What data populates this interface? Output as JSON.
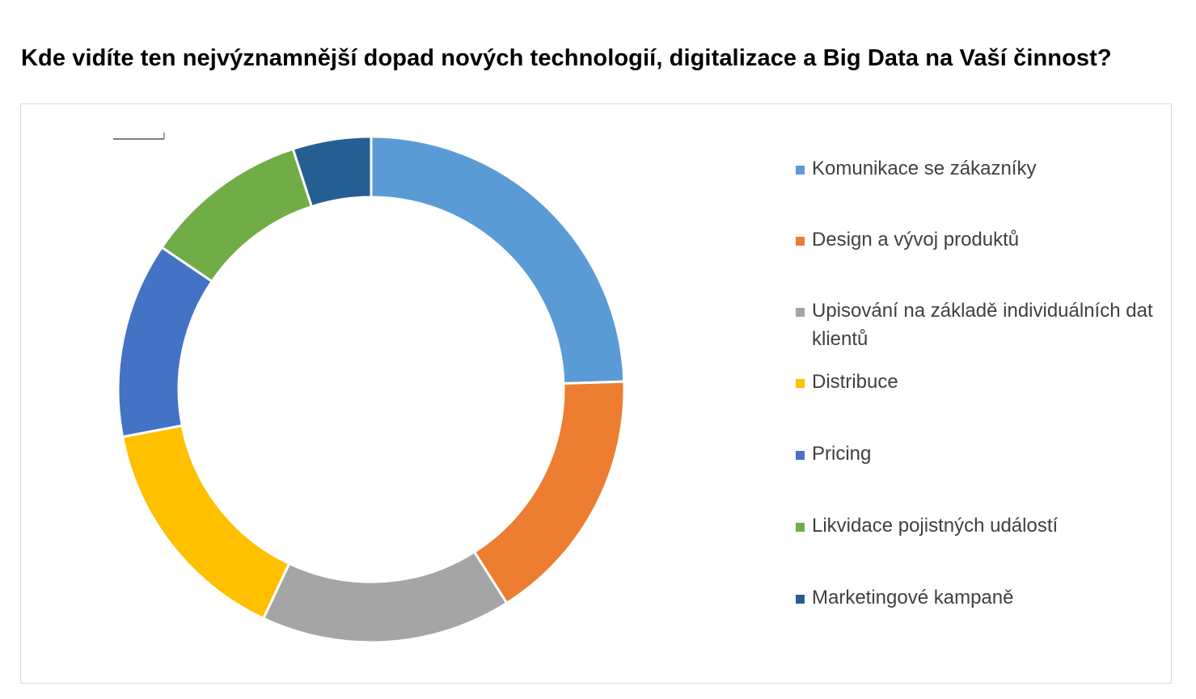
{
  "chart_data": {
    "type": "pie",
    "donut": true,
    "title": "Kde vidíte ten nejvýznamnější dopad nových technologií, digitalizace a Big Data na Vaší činnost?",
    "legend_position": "right",
    "slices": [
      {
        "label": "Komunikace se zákazníky",
        "value": 24.5,
        "color": "#5B9BD5"
      },
      {
        "label": "Design a vývoj produktů",
        "value": 16.5,
        "color": "#ED7D31"
      },
      {
        "label": "Upisování na základě individuálních dat klientů",
        "value": 16.0,
        "color": "#A5A5A5"
      },
      {
        "label": "Distribuce",
        "value": 15.0,
        "color": "#FFC000"
      },
      {
        "label": "Pricing",
        "value": 12.5,
        "color": "#4472C4"
      },
      {
        "label": "Likvidace pojistných událostí",
        "value": 10.5,
        "color": "#70AD47"
      },
      {
        "label": "Marketingové kampaně",
        "value": 5.0,
        "color": "#255E91"
      }
    ]
  }
}
